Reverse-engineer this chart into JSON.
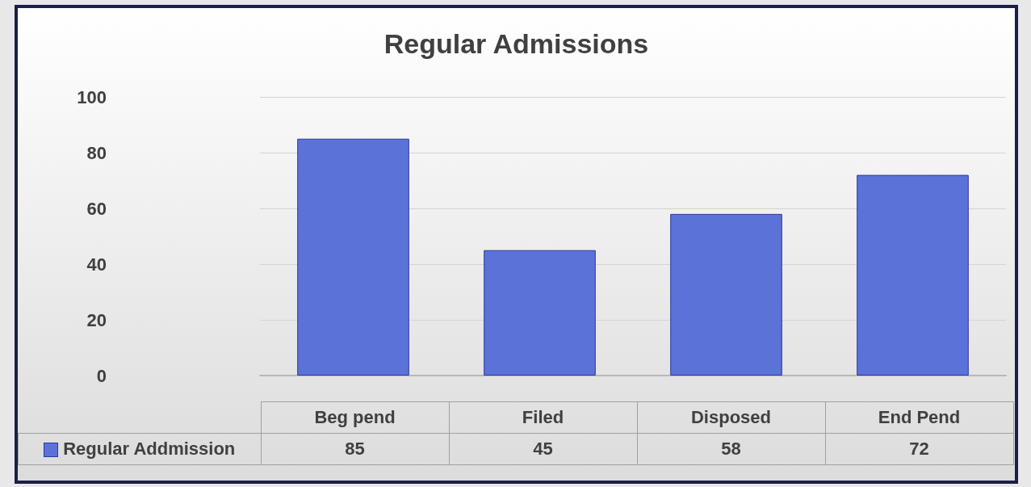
{
  "chart_data": {
    "type": "bar",
    "title": "Regular Admissions",
    "categories": [
      "Beg pend",
      "Filed",
      "Disposed",
      "End Pend"
    ],
    "series": [
      {
        "name": "Regular Addmission",
        "color": "#5b72d9",
        "values": [
          85,
          45,
          58,
          72
        ]
      }
    ],
    "ylim": [
      0,
      100
    ],
    "yticks": [
      0,
      20,
      40,
      60,
      80,
      100
    ],
    "grid": "y",
    "legend": "bottom",
    "data_labels": true
  }
}
